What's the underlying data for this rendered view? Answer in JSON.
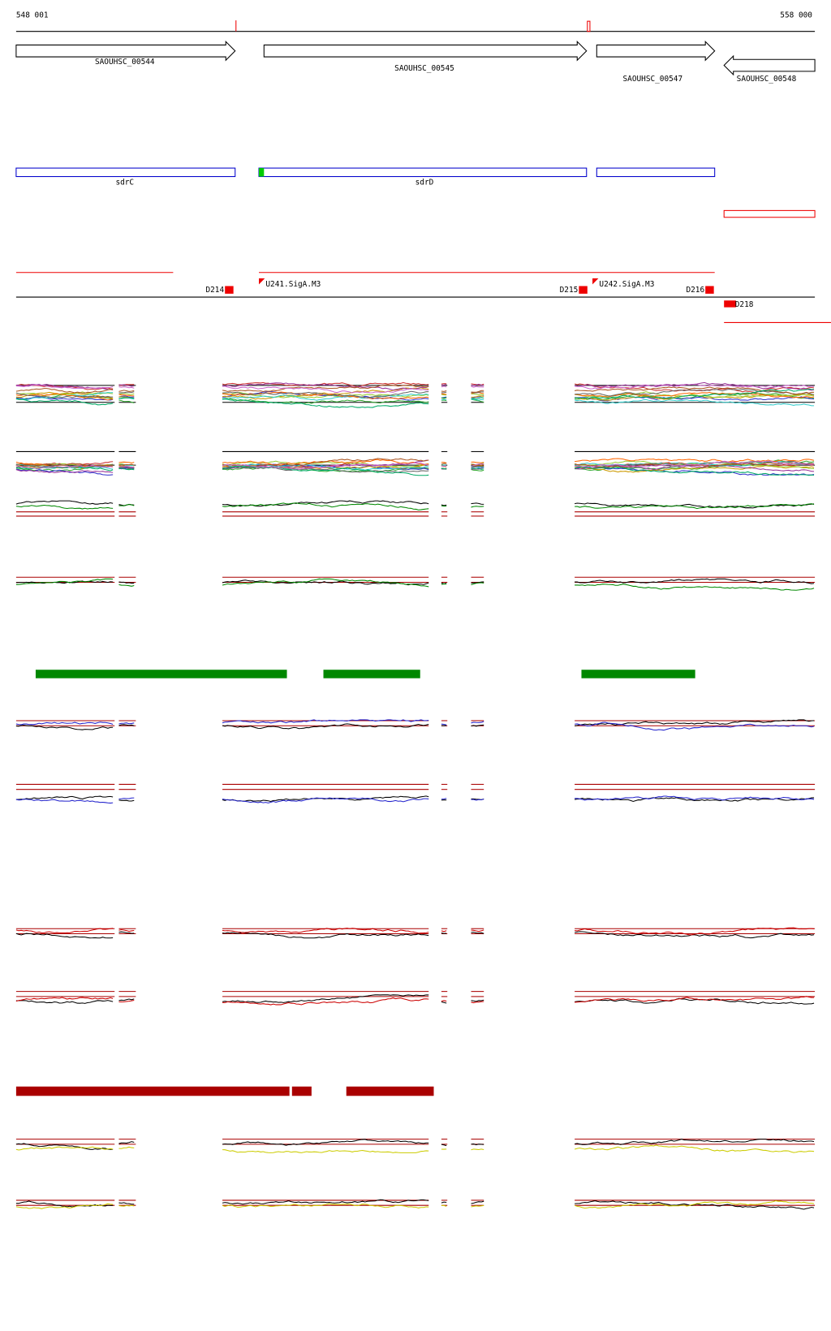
{
  "ruler": {
    "start": "548 001",
    "end": "558 000"
  },
  "genes": [
    {
      "label": "SAOUHSC_00544"
    },
    {
      "label": "SAOUHSC_00545"
    },
    {
      "label": "SAOUHSC_00547"
    },
    {
      "label": "SAOUHSC_00548"
    }
  ],
  "annotations": [
    {
      "label": "sdrC"
    },
    {
      "label": "sdrD"
    }
  ],
  "features": [
    {
      "label": "D214"
    },
    {
      "label": "U241.SigA.M3"
    },
    {
      "label": "D215"
    },
    {
      "label": "U242.SigA.M3"
    },
    {
      "label": "D216"
    },
    {
      "label": "D218"
    }
  ]
}
